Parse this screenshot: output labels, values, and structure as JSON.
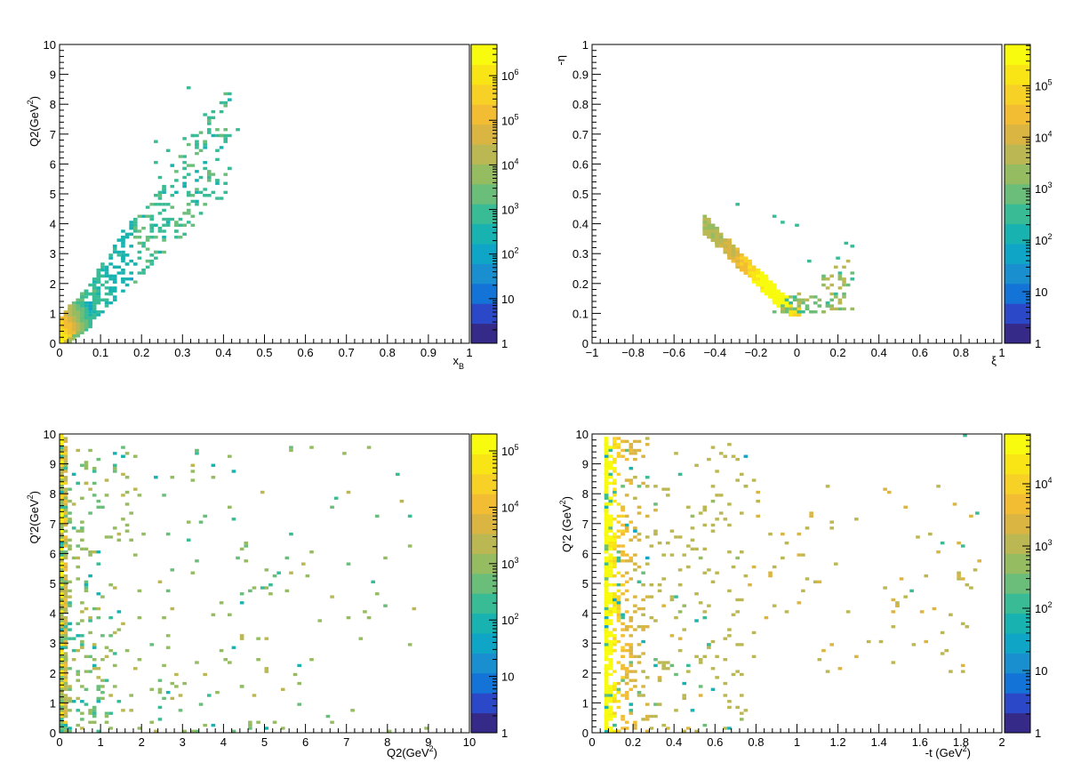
{
  "chart_data": [
    {
      "type": "heatmap",
      "xlabel": "x_B",
      "ylabel": "Q2(GeV^2)",
      "xlim": [
        0,
        1
      ],
      "ylim": [
        0,
        10
      ],
      "xticks": [
        "0",
        "0.1",
        "0.2",
        "0.3",
        "0.4",
        "0.5",
        "0.6",
        "0.7",
        "0.8",
        "0.9",
        "1"
      ],
      "yticks": [
        "0",
        "1",
        "2",
        "3",
        "4",
        "5",
        "6",
        "7",
        "8",
        "9",
        "10"
      ],
      "colorbar_ticks": [
        "1",
        "10",
        "10^2",
        "10^3",
        "10^4",
        "10^5",
        "10^6"
      ],
      "z_max_log": 6.7,
      "grid": false
    },
    {
      "type": "heatmap",
      "xlabel": "ξ",
      "ylabel": "-η",
      "xlim": [
        -1,
        1
      ],
      "ylim": [
        0,
        1
      ],
      "xticks": [
        "−1",
        "−0.8",
        "−0.6",
        "−0.4",
        "−0.2",
        "0",
        "0.2",
        "0.4",
        "0.6",
        "0.8",
        "1"
      ],
      "yticks": [
        "0",
        "0.1",
        "0.2",
        "0.3",
        "0.4",
        "0.5",
        "0.6",
        "0.7",
        "0.8",
        "0.9",
        "1"
      ],
      "colorbar_ticks": [
        "1",
        "10",
        "10^2",
        "10^3",
        "10^4",
        "10^5"
      ],
      "z_max_log": 5.8,
      "grid": false
    },
    {
      "type": "heatmap",
      "xlabel": "Q2(GeV^2)",
      "ylabel": "Q'2(GeV^2)",
      "xlim": [
        0,
        10
      ],
      "ylim": [
        0,
        10
      ],
      "xticks": [
        "0",
        "1",
        "2",
        "3",
        "4",
        "5",
        "6",
        "7",
        "8",
        "9",
        "10"
      ],
      "yticks": [
        "0",
        "1",
        "2",
        "3",
        "4",
        "5",
        "6",
        "7",
        "8",
        "9",
        "10"
      ],
      "colorbar_ticks": [
        "1",
        "10",
        "10^2",
        "10^3",
        "10^4",
        "10^5"
      ],
      "z_max_log": 5.3,
      "grid": false
    },
    {
      "type": "heatmap",
      "xlabel": "-t (GeV^2)",
      "ylabel": "Q'2 (GeV^2)",
      "xlim": [
        0,
        2
      ],
      "ylim": [
        0,
        10
      ],
      "xticks": [
        "0",
        "0.2",
        "0.4",
        "0.6",
        "0.8",
        "1",
        "1.2",
        "1.4",
        "1.6",
        "1.8",
        "2"
      ],
      "yticks": [
        "0",
        "1",
        "2",
        "3",
        "4",
        "5",
        "6",
        "7",
        "8",
        "9",
        "10"
      ],
      "colorbar_ticks": [
        "1",
        "10",
        "10^2",
        "10^3",
        "10^4"
      ],
      "z_max_log": 4.8,
      "grid": false
    }
  ],
  "colors": {
    "palette": [
      "#352a87",
      "#2b48c8",
      "#1373d6",
      "#1a8fd0",
      "#0fa5c6",
      "#18b3b0",
      "#39bc96",
      "#6bbd7a",
      "#96bc62",
      "#bbb854",
      "#dbb542",
      "#f3bd33",
      "#f8d126",
      "#f9e515",
      "#f9fb0e"
    ]
  }
}
